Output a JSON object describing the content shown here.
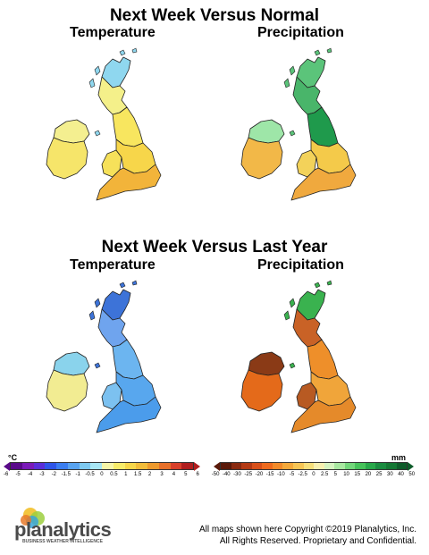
{
  "sections": [
    {
      "title": "Next Week Versus Normal",
      "left_label": "Temperature",
      "right_label": "Precipitation"
    },
    {
      "title": "Next Week Versus Last Year",
      "left_label": "Temperature",
      "right_label": "Precipitation"
    }
  ],
  "maps": [
    {
      "id": "normal-temperature",
      "variable": "temperature",
      "baseline": "normal",
      "fills": {
        "north_scotland": "#8fd7ef",
        "scotland": "#f4f08a",
        "northern_england": "#f8e65f",
        "midlands": "#f7d64a",
        "south_east": "#f2b43a",
        "wales": "#f6e15a",
        "ireland_north": "#f4ef90",
        "ireland_south": "#f6e56a"
      }
    },
    {
      "id": "normal-precipitation",
      "variable": "precipitation",
      "baseline": "normal",
      "fills": {
        "north_scotland": "#5bc47a",
        "scotland": "#49b56a",
        "northern_england": "#1f9a4c",
        "midlands": "#f4ca4a",
        "south_east": "#f0a93e",
        "wales": "#f3d25a",
        "ireland_north": "#9ee6a8",
        "ireland_south": "#f2b848"
      }
    },
    {
      "id": "lastyear-temperature",
      "variable": "temperature",
      "baseline": "last year",
      "fills": {
        "north_scotland": "#3d73d8",
        "scotland": "#6fa4ee",
        "northern_england": "#6cb5f0",
        "midlands": "#58a7ee",
        "south_east": "#4b9ceb",
        "wales": "#7cc1f0",
        "ireland_north": "#8ad3ec",
        "ireland_south": "#f2ec92"
      }
    },
    {
      "id": "lastyear-precipitation",
      "variable": "precipitation",
      "baseline": "last year",
      "fills": {
        "north_scotland": "#3ab24f",
        "scotland": "#c96226",
        "northern_england": "#ee8f2a",
        "midlands": "#f0a53a",
        "south_east": "#e58a2a",
        "wales": "#b85a22",
        "ireland_north": "#8a3a16",
        "ireland_south": "#e46a1a"
      }
    }
  ],
  "legend": {
    "temperature": {
      "unit": "°C",
      "ticks": [
        "-6",
        "-5",
        "-4",
        "-3",
        "-2",
        "-1.5",
        "-1",
        "-0.5",
        "0",
        "0.5",
        "1",
        "1.5",
        "2",
        "3",
        "4",
        "5",
        "6"
      ],
      "colors": [
        "#5a0a8a",
        "#7a1ab8",
        "#5a2ed8",
        "#2f55e8",
        "#3b7ef0",
        "#58a3f0",
        "#7ec9f0",
        "#a8e6f4",
        "#f6f6a8",
        "#f6ec6a",
        "#f6d64a",
        "#f2bc3a",
        "#ee9a2e",
        "#e8702a",
        "#d8402a",
        "#b01e1e"
      ]
    },
    "precipitation": {
      "unit": "mm",
      "ticks": [
        "-50",
        "-40",
        "-30",
        "-25",
        "-20",
        "-15",
        "-10",
        "-5",
        "-2.5",
        "0",
        "2.5",
        "5",
        "10",
        "15",
        "20",
        "25",
        "30",
        "40",
        "50"
      ],
      "colors": [
        "#5a1a0a",
        "#8a2a10",
        "#b43a14",
        "#d8501a",
        "#ee6a1e",
        "#f28a2a",
        "#f4a83a",
        "#f6c454",
        "#f6de7a",
        "#f8f0b0",
        "#d6f4c0",
        "#a8e8a0",
        "#72d67a",
        "#46c25a",
        "#28a84a",
        "#1a8c40",
        "#147834",
        "#0e5c2a"
      ]
    }
  },
  "footer": {
    "logo_text": "planalytics",
    "tagline": "BUSINESS WEATHER INTELLIGENCE",
    "copyright_line1": "All maps shown here Copyright ©2019 Planalytics, Inc.",
    "copyright_line2": "All Rights Reserved. Proprietary and Confidential."
  }
}
